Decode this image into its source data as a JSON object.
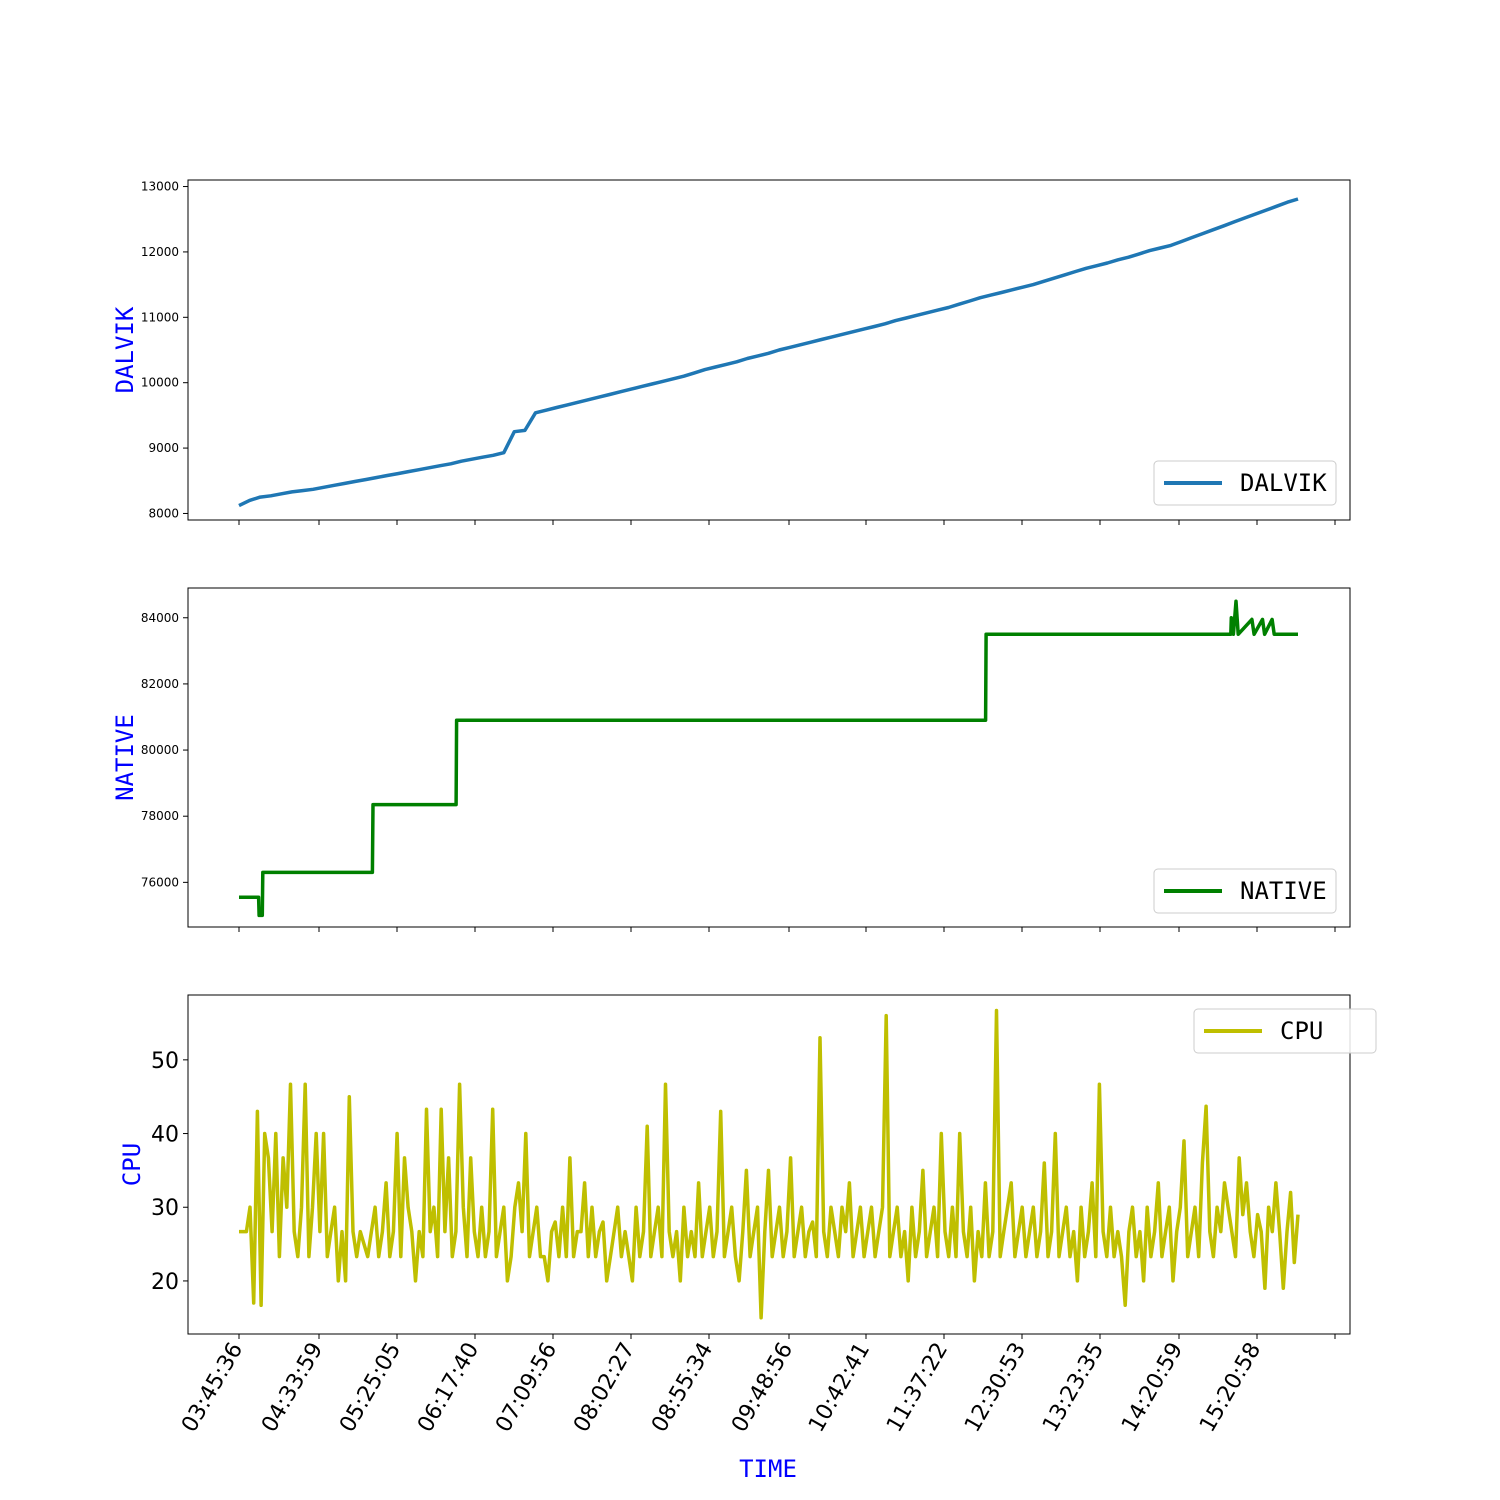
{
  "axis_label_color": "#0000ff",
  "chart_data": [
    {
      "type": "line",
      "ylabel": "DALVIK",
      "ylim": [
        7900,
        13100
      ],
      "yticks": [
        8000,
        9000,
        10000,
        11000,
        12000,
        13000
      ],
      "legend": "bottom-right",
      "series": [
        {
          "name": "DALVIK",
          "color": "#1f77b4",
          "values": [
            8120,
            8200,
            8250,
            8270,
            8300,
            8330,
            8350,
            8370,
            8400,
            8430,
            8460,
            8490,
            8520,
            8550,
            8580,
            8610,
            8640,
            8670,
            8700,
            8730,
            8760,
            8800,
            8830,
            8860,
            8890,
            8930,
            9250,
            9270,
            9540,
            9580,
            9620,
            9660,
            9700,
            9740,
            9780,
            9820,
            9860,
            9900,
            9940,
            9980,
            10020,
            10060,
            10100,
            10150,
            10200,
            10240,
            10280,
            10320,
            10370,
            10410,
            10450,
            10500,
            10540,
            10580,
            10620,
            10660,
            10700,
            10740,
            10780,
            10820,
            10860,
            10900,
            10950,
            10990,
            11030,
            11070,
            11110,
            11150,
            11200,
            11250,
            11300,
            11340,
            11380,
            11420,
            11460,
            11500,
            11550,
            11600,
            11650,
            11700,
            11750,
            11790,
            11830,
            11880,
            11920,
            11970,
            12020,
            12060,
            12100,
            12160,
            12220,
            12280,
            12340,
            12400,
            12460,
            12520,
            12580,
            12640,
            12700,
            12760,
            12810
          ]
        }
      ]
    },
    {
      "type": "line",
      "ylabel": "NATIVE",
      "ylim": [
        74650,
        84900
      ],
      "yticks": [
        76000,
        78000,
        80000,
        82000,
        84000
      ],
      "legend": "bottom-right",
      "series": [
        {
          "name": "NATIVE",
          "color": "#008000",
          "steps": [
            [
              0,
              75550
            ],
            [
              0.0185,
              75550
            ],
            [
              0.019,
              75000
            ],
            [
              0.022,
              75000
            ],
            [
              0.0225,
              76300
            ],
            [
              0.126,
              76300
            ],
            [
              0.1265,
              78350
            ],
            [
              0.205,
              78350
            ],
            [
              0.2055,
              80900
            ],
            [
              0.705,
              80900
            ],
            [
              0.7055,
              83500
            ],
            [
              0.9365,
              83500
            ],
            [
              0.937,
              84000
            ],
            [
              0.939,
              83500
            ],
            [
              0.9415,
              84500
            ],
            [
              0.9435,
              83500
            ],
            [
              0.9565,
              83950
            ],
            [
              0.9585,
              83500
            ],
            [
              0.9665,
              83950
            ],
            [
              0.9685,
              83500
            ],
            [
              0.9755,
              83950
            ],
            [
              0.9775,
              83500
            ],
            [
              1,
              83500
            ]
          ]
        }
      ]
    },
    {
      "type": "line",
      "ylabel": "CPU",
      "xlabel": "TIME",
      "ylim": [
        12.8,
        58.8
      ],
      "yticks": [
        20,
        30,
        40,
        50
      ],
      "legend": "top-right",
      "x_tick_labels": [
        "03:45:36",
        "04:33:59",
        "05:25:05",
        "06:17:40",
        "07:09:56",
        "08:02:27",
        "08:55:34",
        "09:48:56",
        "10:42:41",
        "11:37:22",
        "12:30:53",
        "13:23:35",
        "14:20:59",
        "15:20:58"
      ],
      "series": [
        {
          "name": "CPU",
          "color": "#bfbf00",
          "values": [
            26.7,
            26.7,
            26.7,
            30.0,
            17.0,
            43.0,
            16.7,
            40.0,
            36.7,
            26.7,
            40.0,
            23.3,
            36.7,
            30.0,
            46.7,
            26.7,
            23.3,
            30.0,
            46.7,
            23.3,
            30.0,
            40.0,
            26.7,
            40.0,
            23.3,
            26.7,
            30.0,
            20.0,
            26.7,
            20.0,
            45.0,
            26.7,
            23.3,
            26.7,
            25.0,
            23.3,
            26.7,
            30.0,
            23.3,
            26.7,
            33.3,
            23.3,
            26.7,
            40.0,
            23.3,
            36.7,
            30.0,
            26.7,
            20.0,
            26.7,
            23.3,
            43.3,
            26.7,
            30.0,
            23.3,
            43.3,
            26.7,
            36.7,
            23.3,
            26.7,
            46.7,
            30.0,
            23.3,
            36.7,
            26.7,
            23.3,
            30.0,
            23.3,
            26.7,
            43.3,
            23.3,
            26.7,
            30.0,
            20.0,
            23.3,
            30.0,
            33.3,
            26.7,
            40.0,
            23.3,
            26.7,
            30.0,
            23.3,
            23.3,
            20.0,
            26.7,
            28.0,
            23.3,
            30.0,
            23.3,
            36.7,
            23.3,
            26.7,
            26.7,
            33.3,
            23.3,
            30.0,
            23.3,
            26.7,
            28.0,
            20.0,
            23.3,
            26.7,
            30.0,
            23.3,
            26.7,
            23.3,
            20.0,
            30.0,
            23.3,
            26.7,
            41.0,
            23.3,
            26.7,
            30.0,
            23.3,
            46.7,
            26.7,
            23.3,
            26.7,
            20.0,
            30.0,
            23.3,
            26.7,
            23.3,
            33.3,
            23.3,
            26.7,
            30.0,
            23.3,
            26.7,
            43.0,
            23.3,
            26.7,
            30.0,
            23.3,
            20.0,
            26.7,
            35.0,
            23.3,
            26.7,
            30.0,
            15.0,
            26.7,
            35.0,
            23.3,
            26.7,
            30.0,
            23.3,
            26.7,
            36.7,
            23.3,
            26.7,
            30.0,
            23.3,
            26.7,
            28.0,
            23.3,
            53.0,
            26.7,
            23.3,
            30.0,
            26.7,
            23.3,
            30.0,
            26.7,
            33.3,
            23.3,
            26.7,
            30.0,
            23.3,
            26.7,
            30.0,
            23.3,
            26.7,
            30.0,
            56.0,
            23.3,
            26.7,
            30.0,
            23.3,
            26.7,
            20.0,
            30.0,
            23.3,
            26.7,
            35.0,
            23.3,
            26.7,
            30.0,
            23.3,
            40.0,
            26.7,
            23.3,
            30.0,
            23.3,
            40.0,
            26.7,
            23.3,
            30.0,
            20.0,
            26.7,
            23.3,
            33.3,
            23.3,
            26.7,
            56.7,
            23.3,
            26.7,
            30.0,
            33.3,
            23.3,
            26.7,
            30.0,
            23.3,
            26.7,
            30.0,
            23.3,
            26.7,
            36.0,
            23.3,
            26.7,
            40.0,
            23.3,
            26.7,
            30.0,
            23.3,
            26.7,
            20.0,
            30.0,
            23.3,
            26.7,
            33.3,
            23.3,
            46.7,
            26.7,
            23.3,
            30.0,
            23.3,
            26.7,
            23.3,
            16.7,
            26.7,
            30.0,
            23.3,
            26.7,
            20.0,
            30.0,
            23.3,
            26.7,
            33.3,
            23.3,
            26.7,
            30.0,
            20.0,
            26.7,
            30.0,
            39.0,
            23.3,
            26.7,
            30.0,
            23.3,
            36.0,
            43.7,
            26.7,
            23.3,
            30.0,
            26.7,
            33.3,
            30.0,
            26.7,
            23.3,
            36.7,
            29.0,
            33.3,
            26.7,
            23.3,
            29.0,
            26.7,
            19.0,
            30.0,
            26.7,
            33.3,
            26.7,
            19.0,
            26.7,
            32.0,
            22.5,
            29.0
          ]
        }
      ]
    }
  ]
}
